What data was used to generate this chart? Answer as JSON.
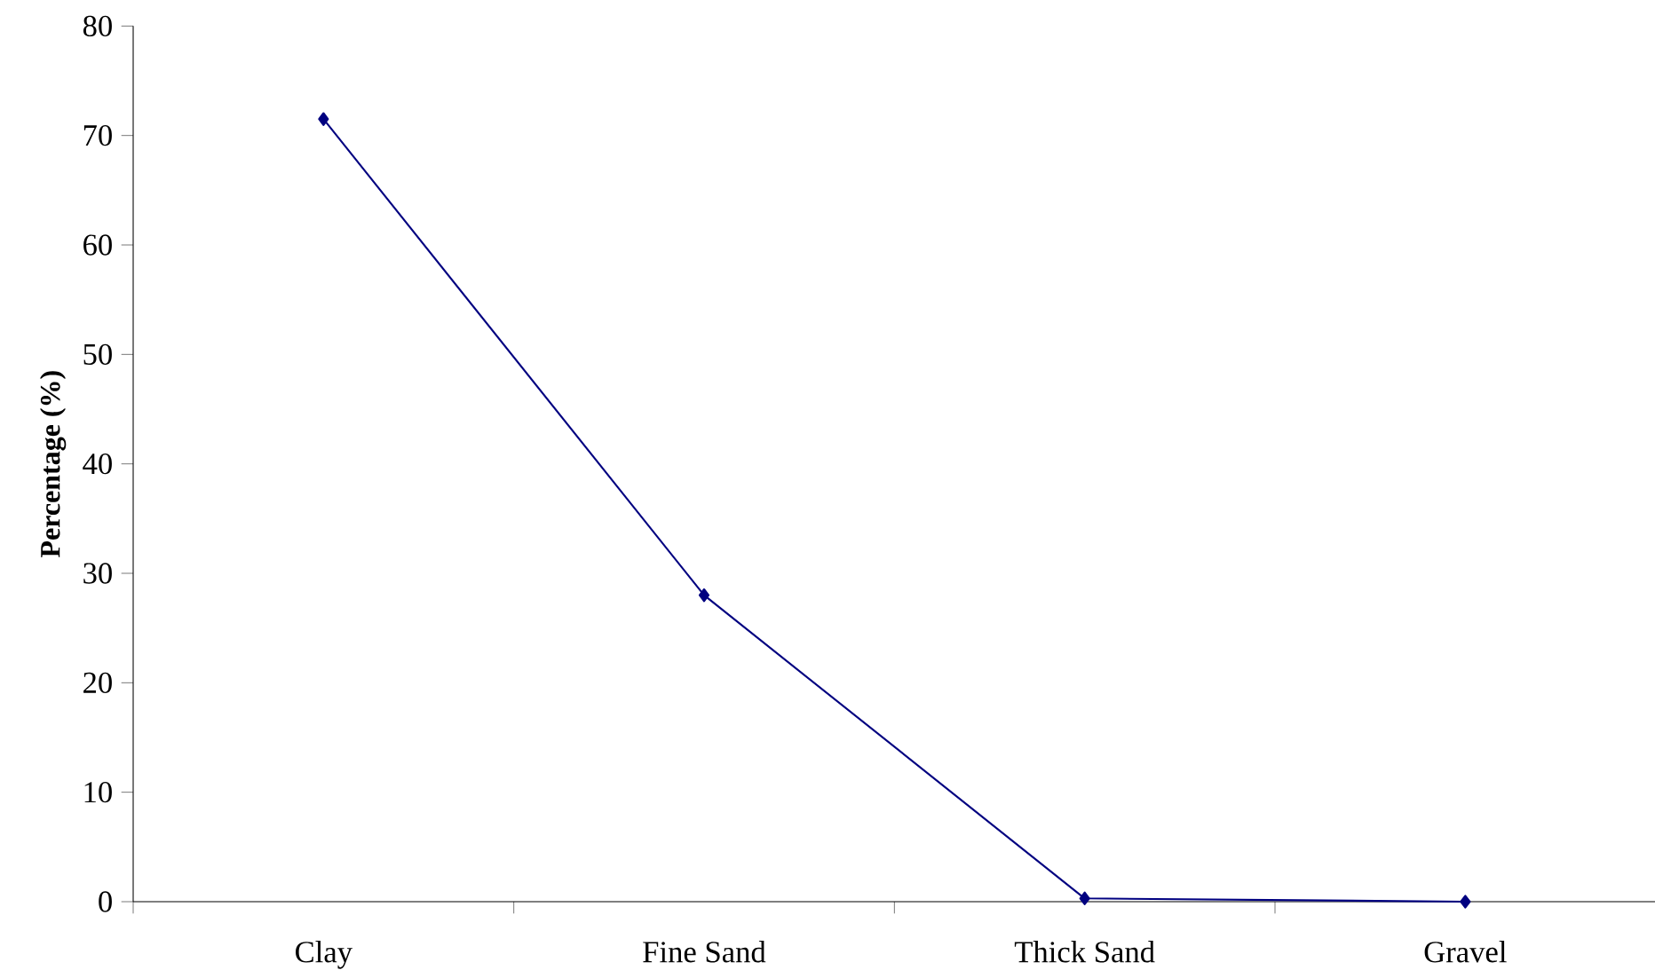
{
  "chart_data": {
    "type": "line",
    "ylabel": "**Percentage (%)**",
    "categories": [
      "Clay",
      "Fine Sand",
      "Thick Sand",
      "Gravel"
    ],
    "series": [
      {
        "color": "#000080",
        "values": [
          71.5,
          28,
          0.3,
          0
        ]
      }
    ],
    "ylim": [
      0,
      80
    ],
    "yticks": [
      0,
      10,
      20,
      30,
      40,
      50,
      60,
      70,
      80
    ],
    "marker": "diamond",
    "line_style": "solid"
  }
}
